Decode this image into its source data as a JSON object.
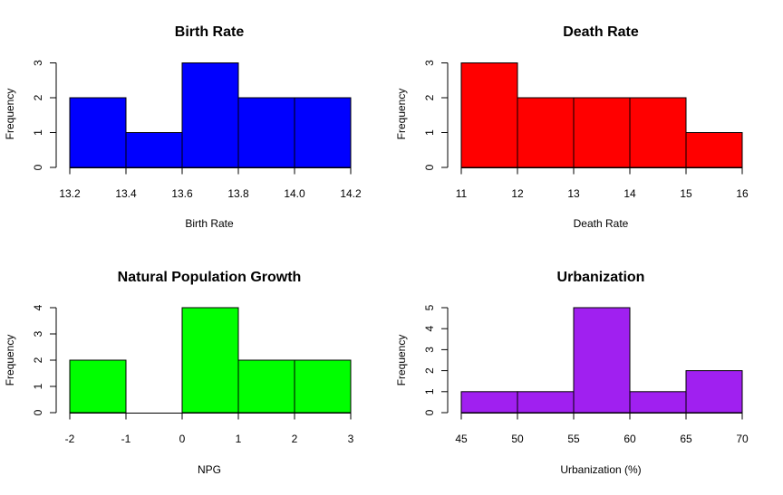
{
  "chart_data": [
    {
      "type": "bar",
      "title": "Birth Rate",
      "xlabel": "Birth Rate",
      "ylabel": "Frequency",
      "color": "#0000FF",
      "breaks": [
        13.2,
        13.4,
        13.6,
        13.8,
        14.0,
        14.2
      ],
      "values": [
        2,
        1,
        3,
        2,
        2
      ],
      "x_ticks": [
        "13.2",
        "13.4",
        "13.6",
        "13.8",
        "14.0",
        "14.2"
      ],
      "y_ticks": [
        "0",
        "1",
        "2",
        "3"
      ],
      "xlim": [
        13.2,
        14.2
      ],
      "ylim": [
        0,
        3
      ]
    },
    {
      "type": "bar",
      "title": "Death Rate",
      "xlabel": "Death Rate",
      "ylabel": "Frequency",
      "color": "#FF0000",
      "breaks": [
        11,
        12,
        13,
        14,
        15,
        16
      ],
      "values": [
        3,
        2,
        2,
        2,
        1
      ],
      "x_ticks": [
        "11",
        "12",
        "13",
        "14",
        "15",
        "16"
      ],
      "y_ticks": [
        "0",
        "1",
        "2",
        "3"
      ],
      "xlim": [
        11,
        16
      ],
      "ylim": [
        0,
        3
      ]
    },
    {
      "type": "bar",
      "title": "Natural Population Growth",
      "xlabel": "NPG",
      "ylabel": "Frequency",
      "color": "#00FF00",
      "breaks": [
        -2,
        -1,
        0,
        1,
        2,
        3
      ],
      "values": [
        2,
        0,
        4,
        2,
        2
      ],
      "x_ticks": [
        "-2",
        "-1",
        "0",
        "1",
        "2",
        "3"
      ],
      "y_ticks": [
        "0",
        "1",
        "2",
        "3",
        "4"
      ],
      "xlim": [
        -2,
        3
      ],
      "ylim": [
        0,
        4
      ]
    },
    {
      "type": "bar",
      "title": "Urbanization",
      "xlabel": "Urbanization (%)",
      "ylabel": "Frequency",
      "color": "#A020F0",
      "breaks": [
        45,
        50,
        55,
        60,
        65,
        70
      ],
      "values": [
        1,
        1,
        5,
        1,
        2
      ],
      "x_ticks": [
        "45",
        "50",
        "55",
        "60",
        "65",
        "70"
      ],
      "y_ticks": [
        "0",
        "1",
        "2",
        "3",
        "4",
        "5"
      ],
      "xlim": [
        45,
        70
      ],
      "ylim": [
        0,
        5
      ]
    }
  ]
}
